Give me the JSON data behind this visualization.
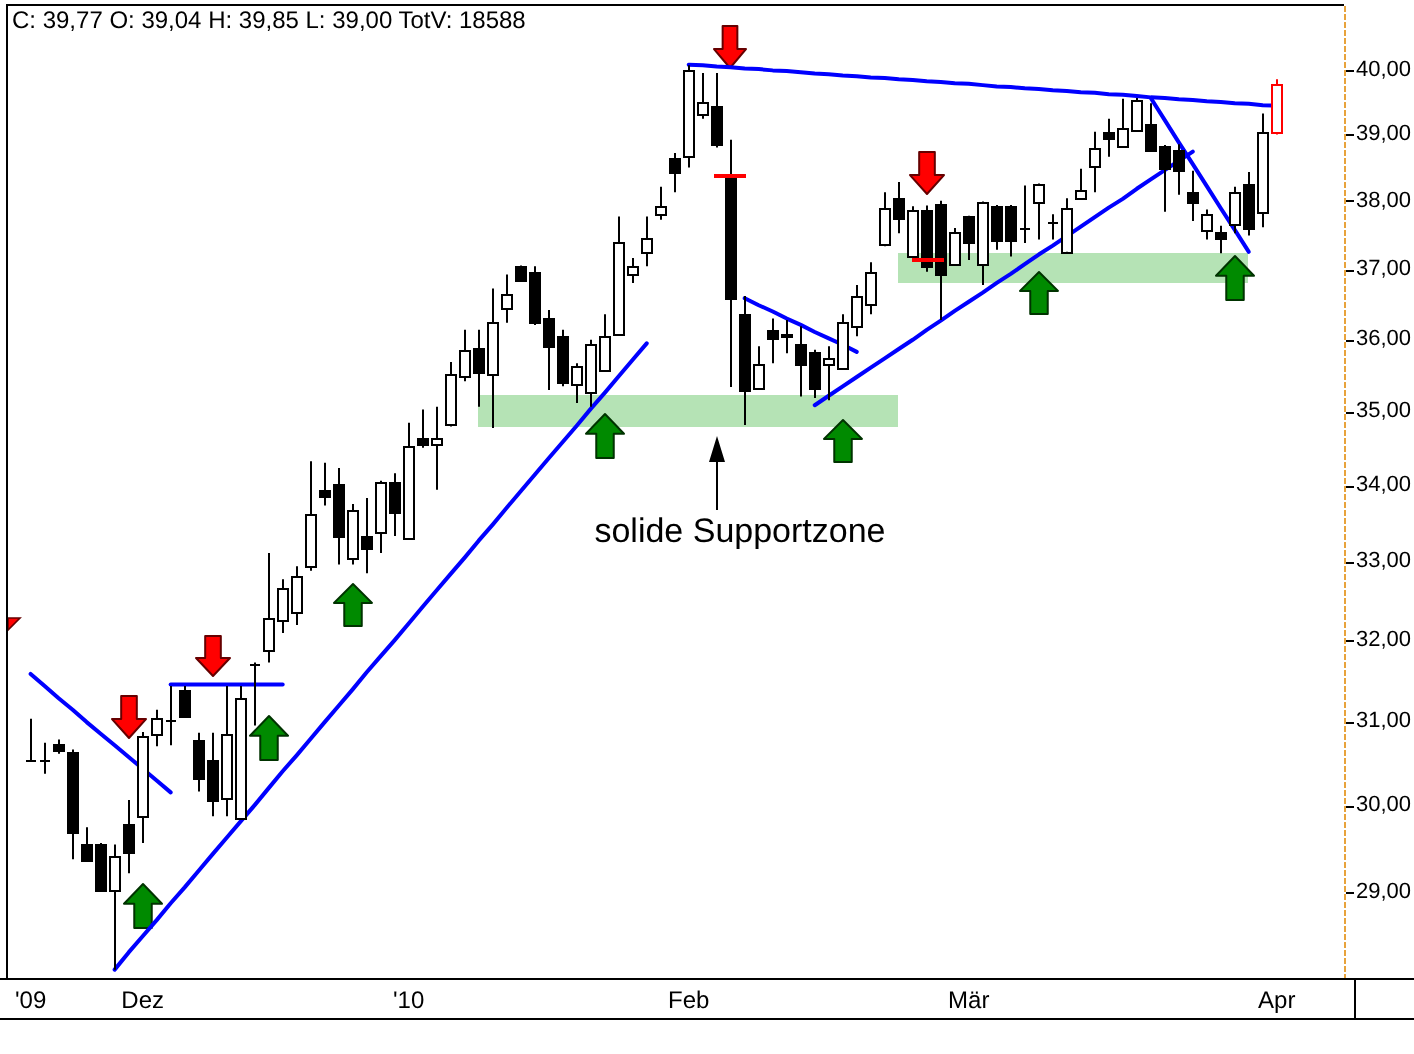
{
  "chart_data": {
    "type": "candlestick",
    "title": "C: 39,77 O: 39,04 H: 39,85 L: 39,00 TotV: 18588",
    "categories": [
      "'09",
      null,
      null,
      null,
      null,
      null,
      null,
      null,
      "Dez",
      null,
      null,
      null,
      null,
      null,
      null,
      null,
      null,
      null,
      null,
      null,
      null,
      null,
      null,
      null,
      null,
      null,
      null,
      "'10",
      null,
      null,
      null,
      null,
      null,
      null,
      null,
      null,
      null,
      null,
      null,
      null,
      null,
      null,
      null,
      null,
      null,
      null,
      null,
      "Feb",
      null,
      null,
      null,
      null,
      null,
      null,
      null,
      null,
      null,
      null,
      null,
      null,
      null,
      null,
      null,
      null,
      null,
      null,
      null,
      "Mär",
      null,
      null,
      null,
      null,
      null,
      null,
      null,
      null,
      null,
      null,
      null,
      null,
      null,
      null,
      null,
      null,
      null,
      null,
      null,
      null,
      null,
      "Apr"
    ],
    "ohlc": [
      [
        30.54,
        31.03,
        30.52,
        30.54
      ],
      [
        30.54,
        30.74,
        30.37,
        30.54
      ],
      [
        30.73,
        30.78,
        30.61,
        30.65
      ],
      [
        30.64,
        30.66,
        29.37,
        29.68
      ],
      [
        29.55,
        29.74,
        29.36,
        29.37
      ],
      [
        29.55,
        29.56,
        29.01,
        29.02
      ],
      [
        29.02,
        29.54,
        28.13,
        29.41
      ],
      [
        29.78,
        30.06,
        29.21,
        29.45
      ],
      [
        29.87,
        30.87,
        29.56,
        30.82
      ],
      [
        30.84,
        31.14,
        30.7,
        31.03
      ],
      [
        31.02,
        31.43,
        30.71,
        31.02
      ],
      [
        31.39,
        31.43,
        31.05,
        31.06
      ],
      [
        30.78,
        30.86,
        30.16,
        30.33
      ],
      [
        30.54,
        30.86,
        29.87,
        30.06
      ],
      [
        30.08,
        31.43,
        29.87,
        30.84
      ],
      [
        29.85,
        31.43,
        29.85,
        31.28
      ],
      [
        31.71,
        31.72,
        30.95,
        31.71
      ],
      [
        31.88,
        33.11,
        31.72,
        32.27
      ],
      [
        32.26,
        32.77,
        32.09,
        32.67
      ],
      [
        32.36,
        32.94,
        32.19,
        32.81
      ],
      [
        32.94,
        34.32,
        32.88,
        33.62
      ],
      [
        33.94,
        34.3,
        33.73,
        33.86
      ],
      [
        34.01,
        34.23,
        32.96,
        33.33
      ],
      [
        33.04,
        33.75,
        32.96,
        33.67
      ],
      [
        33.33,
        33.83,
        32.85,
        33.18
      ],
      [
        33.37,
        34.06,
        33.11,
        34.04
      ],
      [
        34.04,
        34.16,
        33.33,
        33.64
      ],
      [
        33.3,
        34.84,
        33.3,
        34.52
      ],
      [
        34.63,
        35.02,
        34.5,
        34.55
      ],
      [
        34.55,
        35.06,
        33.94,
        34.63
      ],
      [
        34.82,
        35.68,
        34.79,
        35.5
      ],
      [
        35.48,
        36.13,
        35.41,
        35.85
      ],
      [
        35.88,
        36.13,
        35.06,
        35.54
      ],
      [
        35.51,
        36.72,
        34.77,
        36.23
      ],
      [
        36.45,
        36.92,
        36.23,
        36.64
      ],
      [
        37.04,
        37.05,
        36.82,
        36.83
      ],
      [
        36.96,
        37.04,
        36.2,
        36.23
      ],
      [
        36.29,
        36.41,
        35.29,
        35.91
      ],
      [
        36.04,
        36.13,
        35.34,
        35.41
      ],
      [
        35.36,
        35.66,
        35.11,
        35.61
      ],
      [
        35.27,
        35.99,
        35.06,
        35.93
      ],
      [
        35.57,
        36.35,
        35.55,
        36.04
      ],
      [
        36.06,
        37.77,
        36.06,
        37.39
      ],
      [
        36.92,
        37.16,
        36.8,
        37.04
      ],
      [
        37.26,
        37.77,
        37.04,
        37.46
      ],
      [
        37.8,
        38.21,
        37.72,
        37.92
      ],
      [
        38.64,
        38.72,
        38.13,
        38.42
      ],
      [
        38.66,
        40.07,
        38.5,
        40.0
      ],
      [
        39.31,
        39.95,
        39.24,
        39.51
      ],
      [
        39.45,
        39.95,
        38.8,
        38.84
      ],
      [
        38.36,
        38.92,
        35.33,
        36.58
      ],
      [
        36.36,
        36.61,
        34.81,
        35.29
      ],
      [
        35.31,
        35.9,
        35.31,
        35.65
      ],
      [
        36.13,
        36.29,
        35.66,
        36.01
      ],
      [
        36.05,
        36.27,
        35.8,
        36.07
      ],
      [
        35.92,
        36.18,
        35.2,
        35.64
      ],
      [
        35.83,
        35.85,
        35.18,
        35.31
      ],
      [
        35.66,
        35.9,
        35.15,
        35.73
      ],
      [
        35.6,
        36.35,
        35.58,
        36.23
      ],
      [
        36.18,
        36.77,
        36.04,
        36.61
      ],
      [
        36.51,
        37.1,
        36.35,
        36.96
      ],
      [
        37.37,
        38.13,
        37.33,
        37.89
      ],
      [
        38.04,
        38.28,
        37.52,
        37.74
      ],
      [
        37.18,
        37.92,
        37.18,
        37.85
      ],
      [
        37.87,
        37.93,
        36.96,
        37.05
      ],
      [
        37.96,
        38.0,
        36.27,
        36.94
      ],
      [
        37.06,
        37.6,
        37.05,
        37.55
      ],
      [
        37.77,
        37.78,
        37.13,
        37.39
      ],
      [
        37.06,
        37.99,
        36.77,
        37.98
      ],
      [
        37.93,
        37.94,
        37.28,
        37.43
      ],
      [
        37.93,
        37.94,
        37.18,
        37.41
      ],
      [
        37.61,
        38.23,
        37.38,
        37.6
      ],
      [
        37.98,
        38.26,
        37.43,
        38.24
      ],
      [
        37.7,
        37.8,
        37.43,
        37.69
      ],
      [
        37.25,
        38.04,
        37.25,
        37.89
      ],
      [
        38.04,
        38.48,
        38.04,
        38.15
      ],
      [
        38.51,
        39.04,
        38.13,
        38.8
      ],
      [
        39.04,
        39.24,
        38.66,
        38.94
      ],
      [
        38.82,
        39.55,
        38.82,
        39.09
      ],
      [
        39.07,
        39.56,
        39.07,
        39.54
      ],
      [
        39.17,
        39.48,
        38.76,
        38.77
      ],
      [
        38.83,
        38.84,
        37.84,
        38.49
      ],
      [
        38.75,
        38.85,
        38.09,
        38.45
      ],
      [
        38.13,
        38.45,
        37.7,
        37.99
      ],
      [
        37.58,
        37.87,
        37.43,
        37.8
      ],
      [
        37.55,
        37.63,
        37.23,
        37.45
      ],
      [
        37.67,
        38.21,
        37.52,
        38.13
      ],
      [
        38.25,
        38.43,
        37.49,
        37.61
      ],
      [
        37.84,
        39.32,
        37.61,
        39.05
      ],
      [
        39.04,
        39.85,
        39.0,
        39.77
      ]
    ],
    "colors": [
      "#000000",
      "#000000",
      "#000000",
      "#000000",
      "#000000",
      "#000000",
      "#000000",
      "#000000",
      "#000000",
      "#000000",
      "#000000",
      "#000000",
      "#000000",
      "#000000",
      "#000000",
      "#000000",
      "#000000",
      "#000000",
      "#000000",
      "#000000",
      "#000000",
      "#000000",
      "#000000",
      "#000000",
      "#000000",
      "#000000",
      "#000000",
      "#000000",
      "#000000",
      "#000000",
      "#000000",
      "#000000",
      "#000000",
      "#000000",
      "#000000",
      "#000000",
      "#000000",
      "#000000",
      "#000000",
      "#000000",
      "#000000",
      "#000000",
      "#000000",
      "#000000",
      "#000000",
      "#000000",
      "#000000",
      "#000000",
      "#000000",
      "#000000",
      "#000000",
      "#000000",
      "#000000",
      "#000000",
      "#000000",
      "#000000",
      "#000000",
      "#000000",
      "#000000",
      "#000000",
      "#000000",
      "#000000",
      "#000000",
      "#000000",
      "#000000",
      "#000000",
      "#000000",
      "#000000",
      "#000000",
      "#000000",
      "#000000",
      "#000000",
      "#000000",
      "#000000",
      "#000000",
      "#000000",
      "#000000",
      "#000000",
      "#000000",
      "#000000",
      "#000000",
      "#000000",
      "#000000",
      "#000000",
      "#000000",
      "#000000",
      "#000000",
      "#000000",
      "#000000",
      "#ff0000"
    ],
    "log": true,
    "ylim": [
      28.06,
      41.01
    ],
    "yticks": [
      {
        "value": 29,
        "label": "29,00"
      },
      {
        "value": 30,
        "label": "30,00"
      },
      {
        "value": 31,
        "label": "31,00"
      },
      {
        "value": 32,
        "label": "32,00"
      },
      {
        "value": 33,
        "label": "33,00"
      },
      {
        "value": 34,
        "label": "34,00"
      },
      {
        "value": 35,
        "label": "35,00"
      },
      {
        "value": 36,
        "label": "36,00"
      },
      {
        "value": 37,
        "label": "37,00"
      },
      {
        "value": 38,
        "label": "38,00"
      },
      {
        "value": 39,
        "label": "39,00"
      },
      {
        "value": 40,
        "label": "40,00"
      }
    ],
    "annotations": [
      "solide Supportzone"
    ],
    "series": [
      {
        "type": "line",
        "color": "#0000ff",
        "values": [
          31.58,
          31.43,
          31.28,
          31.14,
          30.99,
          30.85,
          30.71,
          30.57,
          30.43,
          30.29,
          30.15,
          null,
          null,
          null,
          null,
          null,
          null,
          null,
          null,
          null,
          null,
          null,
          null,
          null,
          null,
          null,
          null,
          null,
          null,
          null,
          null,
          null,
          null,
          null,
          null,
          null,
          null,
          null,
          null,
          null,
          null,
          null,
          null,
          null,
          null,
          null,
          null,
          null,
          null,
          null,
          null,
          null,
          null,
          null,
          null,
          null,
          null,
          null,
          null,
          null,
          null,
          null,
          null,
          null,
          null,
          null,
          null,
          null,
          null,
          null,
          null,
          null,
          null,
          null,
          null,
          null,
          null,
          null,
          null,
          null,
          null,
          null,
          null,
          null,
          null,
          null,
          null,
          null,
          null,
          null
        ]
      },
      {
        "type": "line",
        "color": "#0000ff",
        "values": [
          null,
          null,
          null,
          null,
          null,
          null,
          null,
          null,
          null,
          null,
          31.45,
          31.45,
          31.45,
          31.45,
          31.45,
          31.45,
          31.45,
          31.45,
          31.45,
          null,
          null,
          null,
          null,
          null,
          null,
          null,
          null,
          null,
          null,
          null,
          null,
          null,
          null,
          null,
          null,
          null,
          null,
          null,
          null,
          null,
          null,
          null,
          null,
          null,
          null,
          null,
          null,
          null,
          null,
          null,
          null,
          null,
          null,
          null,
          null,
          null,
          null,
          null,
          null,
          null,
          null,
          null,
          null,
          null,
          null,
          null,
          null,
          null,
          null,
          null,
          null,
          null,
          null,
          null,
          null,
          null,
          null,
          null,
          null,
          null,
          null,
          null,
          null,
          null,
          null,
          null,
          null,
          null,
          null,
          null
        ]
      },
      {
        "type": "line",
        "color": "#0000ff",
        "values": [
          null,
          null,
          null,
          null,
          null,
          null,
          28.13,
          28.32,
          28.5,
          28.68,
          28.87,
          29.05,
          29.24,
          29.43,
          29.62,
          29.81,
          30.0,
          30.2,
          30.4,
          30.59,
          30.79,
          30.99,
          31.19,
          31.39,
          31.6,
          31.8,
          32.0,
          32.21,
          32.42,
          32.63,
          32.84,
          33.05,
          33.27,
          33.48,
          33.7,
          33.92,
          34.14,
          34.36,
          34.58,
          34.8,
          35.03,
          35.25,
          35.48,
          35.71,
          35.94,
          null,
          null,
          null,
          null,
          null,
          null,
          null,
          null,
          null,
          null,
          null,
          null,
          null,
          null,
          null,
          null,
          null,
          null,
          null,
          null,
          null,
          null,
          null,
          null,
          null,
          null,
          null,
          null,
          null,
          null,
          null,
          null,
          null,
          null,
          null,
          null,
          null,
          null,
          null,
          null,
          null,
          null,
          null,
          null,
          null
        ]
      },
      {
        "type": "line",
        "color": "#0000ff",
        "values": [
          null,
          null,
          null,
          null,
          null,
          null,
          null,
          null,
          null,
          null,
          null,
          null,
          null,
          null,
          null,
          null,
          null,
          null,
          null,
          null,
          null,
          null,
          null,
          null,
          null,
          null,
          null,
          null,
          null,
          null,
          null,
          null,
          null,
          null,
          null,
          null,
          null,
          null,
          null,
          null,
          null,
          null,
          null,
          null,
          null,
          null,
          null,
          40.08,
          40.07,
          40.05,
          40.04,
          40.02,
          40.01,
          39.99,
          39.98,
          39.96,
          39.94,
          39.93,
          39.91,
          39.9,
          39.88,
          39.87,
          39.85,
          39.84,
          39.82,
          39.81,
          39.79,
          39.78,
          39.76,
          39.74,
          39.73,
          39.71,
          39.7,
          39.68,
          39.67,
          39.65,
          39.64,
          39.62,
          39.61,
          39.59,
          39.57,
          39.56,
          39.54,
          39.53,
          39.51,
          39.5,
          39.48,
          39.47,
          39.45,
          39.44
        ]
      },
      {
        "type": "line",
        "color": "#0000ff",
        "values": [
          null,
          null,
          null,
          null,
          null,
          null,
          null,
          null,
          null,
          null,
          null,
          null,
          null,
          null,
          null,
          null,
          null,
          null,
          null,
          null,
          null,
          null,
          null,
          null,
          null,
          null,
          null,
          null,
          null,
          null,
          null,
          null,
          null,
          null,
          null,
          null,
          null,
          null,
          null,
          null,
          null,
          null,
          null,
          null,
          null,
          null,
          null,
          null,
          null,
          null,
          null,
          36.58,
          36.48,
          36.39,
          36.29,
          36.2,
          36.1,
          36.01,
          35.92,
          35.82,
          null,
          null,
          null,
          null,
          null,
          null,
          null,
          null,
          null,
          null,
          null,
          null,
          null,
          null,
          null,
          null,
          null,
          null,
          null,
          null,
          null,
          null,
          null,
          null,
          null,
          null,
          null,
          null,
          null,
          null
        ]
      },
      {
        "type": "line",
        "color": "#0000ff",
        "values": [
          null,
          null,
          null,
          null,
          null,
          null,
          null,
          null,
          null,
          null,
          null,
          null,
          null,
          null,
          null,
          null,
          null,
          null,
          null,
          null,
          null,
          null,
          null,
          null,
          null,
          null,
          null,
          null,
          null,
          null,
          null,
          null,
          null,
          null,
          null,
          null,
          null,
          null,
          null,
          null,
          null,
          null,
          null,
          null,
          null,
          null,
          null,
          null,
          null,
          null,
          null,
          null,
          null,
          null,
          null,
          null,
          35.08,
          35.21,
          35.34,
          35.47,
          35.6,
          35.73,
          35.86,
          35.99,
          36.13,
          36.26,
          36.4,
          36.53,
          36.66,
          36.8,
          36.93,
          37.07,
          37.21,
          37.34,
          37.48,
          37.62,
          37.76,
          37.9,
          38.03,
          38.18,
          38.32,
          38.46,
          38.6,
          38.74,
          null,
          null,
          null,
          null,
          null,
          null
        ]
      },
      {
        "type": "line",
        "color": "#0000ff",
        "values": [
          null,
          null,
          null,
          null,
          null,
          null,
          null,
          null,
          null,
          null,
          null,
          null,
          null,
          null,
          null,
          null,
          null,
          null,
          null,
          null,
          null,
          null,
          null,
          null,
          null,
          null,
          null,
          null,
          null,
          null,
          null,
          null,
          null,
          null,
          null,
          null,
          null,
          null,
          null,
          null,
          null,
          null,
          null,
          null,
          null,
          null,
          null,
          null,
          null,
          null,
          null,
          null,
          null,
          null,
          null,
          null,
          null,
          null,
          null,
          null,
          null,
          null,
          null,
          null,
          null,
          null,
          null,
          null,
          null,
          null,
          null,
          null,
          null,
          null,
          null,
          null,
          null,
          null,
          null,
          null,
          39.56,
          39.22,
          38.88,
          38.55,
          38.22,
          37.89,
          37.57,
          37.25,
          null,
          null
        ]
      }
    ]
  }
}
